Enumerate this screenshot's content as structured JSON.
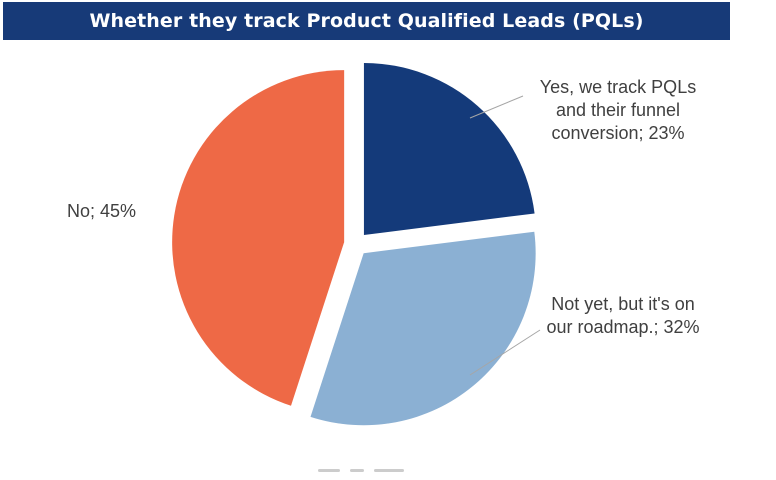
{
  "title": "Whether they track Product Qualified Leads (PQLs)",
  "chart_data": {
    "type": "pie",
    "title": "Whether they track Product Qualified Leads (PQLs)",
    "slices": [
      {
        "label_lines": [
          "Yes, we track PQLs",
          "and their funnel",
          "conversion; 23%"
        ],
        "category": "Yes, we track PQLs and their funnel conversion",
        "value": 23,
        "color": "#143a7a"
      },
      {
        "label_lines": [
          "Not yet, but it's on",
          "our roadmap.; 32%"
        ],
        "category": "Not yet, but it's on our roadmap.",
        "value": 32,
        "color": "#8bb0d3"
      },
      {
        "label_lines": [
          "No; 45%"
        ],
        "category": "No",
        "value": 45,
        "color": "#ee6946"
      }
    ],
    "legend": "none",
    "label_color": "#404040",
    "leader_line_color": "#a6a6a6"
  }
}
